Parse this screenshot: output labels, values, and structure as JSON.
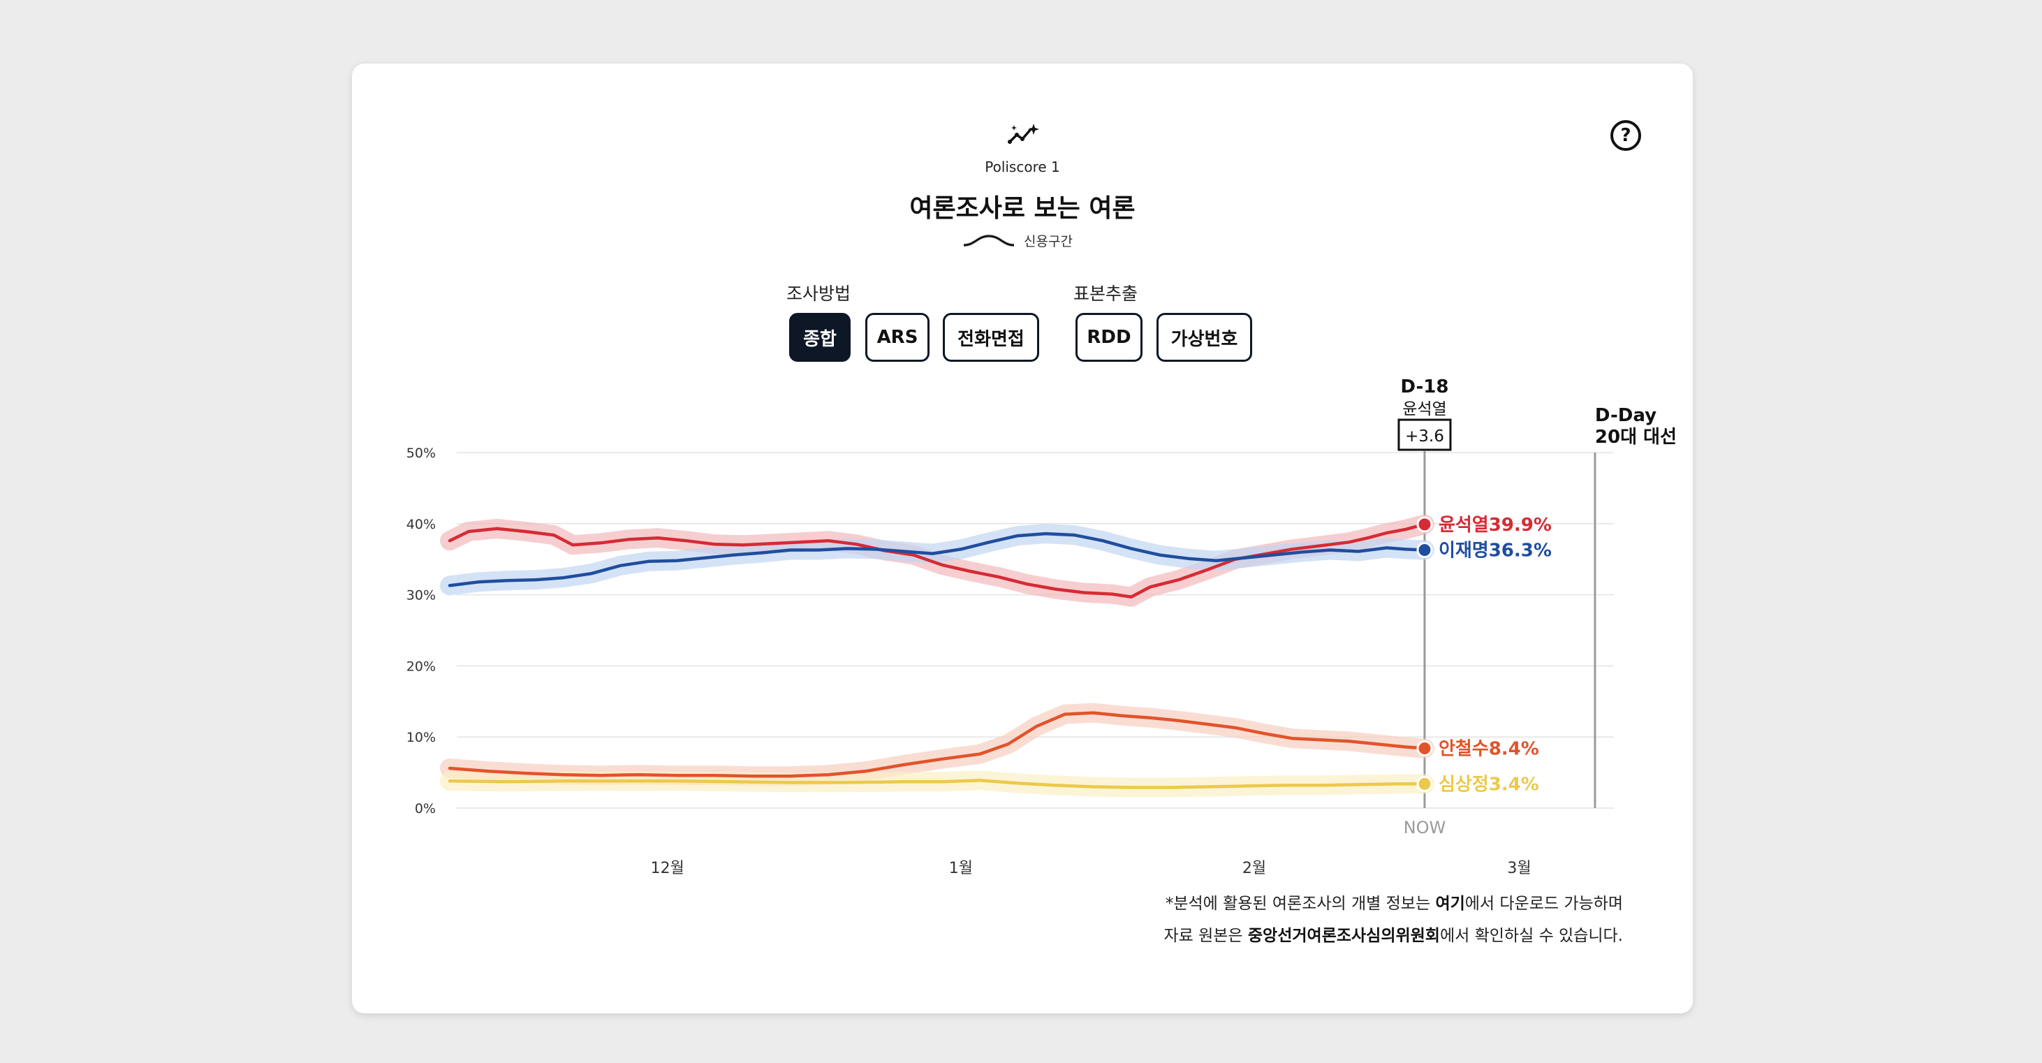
{
  "header": {
    "brand": "Poliscore 1",
    "title": "여론조사로 보는 여론",
    "ci_legend": "신용구간",
    "help_icon": "question-circle-icon"
  },
  "filters": {
    "method_label": "조사방법",
    "method_options": [
      "종합",
      "ARS",
      "전화면접"
    ],
    "method_selected": "종합",
    "sample_label": "표본추출",
    "sample_options": [
      "RDD",
      "가상번호"
    ]
  },
  "annotations": {
    "now_day": "D-18",
    "now_leader": "윤석열",
    "now_margin": "+3.6",
    "now_label": "NOW",
    "dday_label": "D-Day",
    "dday_event": "20대 대선"
  },
  "footnote": {
    "line1_pre": "*분석에 활용된 여론조사의 개별 정보는 ",
    "line1_link": "여기",
    "line1_post": "에서 다운로드 가능하며",
    "line2_pre": "자료 원본은 ",
    "line2_bold": "중앙선거여론조사심의위원회",
    "line2_post": "에서 확인하실 수 있습니다."
  },
  "chart_data": {
    "type": "line",
    "title": "여론조사로 보는 여론",
    "xlabel": "",
    "ylabel": "",
    "ylim": [
      0,
      50
    ],
    "yticks": [
      "0%",
      "10%",
      "20%",
      "30%",
      "40%",
      "50%"
    ],
    "xticks": [
      {
        "label": "12월",
        "date": "2021-12-01"
      },
      {
        "label": "1월",
        "date": "2022-01-01"
      },
      {
        "label": "2월",
        "date": "2022-02-01"
      },
      {
        "label": "3월",
        "date": "2022-03-01"
      }
    ],
    "xlim": [
      "2021-11-08",
      "2022-03-11"
    ],
    "now_date": "2022-02-19",
    "dday_date": "2022-03-09",
    "grid": true,
    "confidence_band": true,
    "series": [
      {
        "name": "윤석열",
        "label": "윤석열39.9%",
        "color": "#d62b35",
        "band_color": "#f2b9bc",
        "points": [
          [
            "2021-11-08",
            37.6
          ],
          [
            "2021-11-10",
            38.9
          ],
          [
            "2021-11-13",
            39.3
          ],
          [
            "2021-11-16",
            38.9
          ],
          [
            "2021-11-19",
            38.4
          ],
          [
            "2021-11-21",
            37.0
          ],
          [
            "2021-11-24",
            37.3
          ],
          [
            "2021-11-27",
            37.8
          ],
          [
            "2021-11-30",
            38.0
          ],
          [
            "2021-12-03",
            37.6
          ],
          [
            "2021-12-06",
            37.1
          ],
          [
            "2021-12-09",
            37.0
          ],
          [
            "2021-12-12",
            37.2
          ],
          [
            "2021-12-15",
            37.4
          ],
          [
            "2021-12-18",
            37.6
          ],
          [
            "2021-12-21",
            37.1
          ],
          [
            "2021-12-24",
            36.2
          ],
          [
            "2021-12-27",
            35.6
          ],
          [
            "2021-12-30",
            34.2
          ],
          [
            "2022-01-02",
            33.3
          ],
          [
            "2022-01-05",
            32.5
          ],
          [
            "2022-01-08",
            31.5
          ],
          [
            "2022-01-11",
            30.8
          ],
          [
            "2022-01-14",
            30.3
          ],
          [
            "2022-01-17",
            30.1
          ],
          [
            "2022-01-19",
            29.7
          ],
          [
            "2022-01-21",
            31.1
          ],
          [
            "2022-01-24",
            32.1
          ],
          [
            "2022-01-27",
            33.5
          ],
          [
            "2022-01-30",
            35.0
          ],
          [
            "2022-02-02",
            35.7
          ],
          [
            "2022-02-05",
            36.4
          ],
          [
            "2022-02-08",
            36.9
          ],
          [
            "2022-02-11",
            37.4
          ],
          [
            "2022-02-13",
            38.0
          ],
          [
            "2022-02-15",
            38.7
          ],
          [
            "2022-02-17",
            39.2
          ],
          [
            "2022-02-19",
            39.9
          ]
        ]
      },
      {
        "name": "이재명",
        "label": "이재명36.3%",
        "color": "#1f4e9e",
        "band_color": "#c2d6f2",
        "points": [
          [
            "2021-11-08",
            31.3
          ],
          [
            "2021-11-11",
            31.8
          ],
          [
            "2021-11-14",
            32.0
          ],
          [
            "2021-11-17",
            32.1
          ],
          [
            "2021-11-20",
            32.4
          ],
          [
            "2021-11-23",
            33.0
          ],
          [
            "2021-11-26",
            34.1
          ],
          [
            "2021-11-29",
            34.7
          ],
          [
            "2021-12-02",
            34.8
          ],
          [
            "2021-12-05",
            35.2
          ],
          [
            "2021-12-08",
            35.6
          ],
          [
            "2021-12-11",
            35.9
          ],
          [
            "2021-12-14",
            36.3
          ],
          [
            "2021-12-17",
            36.3
          ],
          [
            "2021-12-20",
            36.5
          ],
          [
            "2021-12-23",
            36.4
          ],
          [
            "2021-12-26",
            36.1
          ],
          [
            "2021-12-29",
            35.8
          ],
          [
            "2022-01-01",
            36.4
          ],
          [
            "2022-01-04",
            37.4
          ],
          [
            "2022-01-07",
            38.3
          ],
          [
            "2022-01-10",
            38.6
          ],
          [
            "2022-01-13",
            38.4
          ],
          [
            "2022-01-16",
            37.6
          ],
          [
            "2022-01-19",
            36.5
          ],
          [
            "2022-01-22",
            35.6
          ],
          [
            "2022-01-25",
            35.1
          ],
          [
            "2022-01-28",
            34.8
          ],
          [
            "2022-01-31",
            35.2
          ],
          [
            "2022-02-03",
            35.6
          ],
          [
            "2022-02-06",
            36.0
          ],
          [
            "2022-02-09",
            36.3
          ],
          [
            "2022-02-12",
            36.1
          ],
          [
            "2022-02-15",
            36.6
          ],
          [
            "2022-02-17",
            36.4
          ],
          [
            "2022-02-19",
            36.3
          ]
        ]
      },
      {
        "name": "안철수",
        "label": "안철수8.4%",
        "color": "#e2532b",
        "band_color": "#f7cfc0",
        "points": [
          [
            "2021-11-08",
            5.6
          ],
          [
            "2021-11-12",
            5.2
          ],
          [
            "2021-11-16",
            4.9
          ],
          [
            "2021-11-20",
            4.7
          ],
          [
            "2021-11-24",
            4.6
          ],
          [
            "2021-11-28",
            4.7
          ],
          [
            "2021-12-02",
            4.6
          ],
          [
            "2021-12-06",
            4.6
          ],
          [
            "2021-12-10",
            4.5
          ],
          [
            "2021-12-14",
            4.5
          ],
          [
            "2021-12-18",
            4.7
          ],
          [
            "2021-12-22",
            5.2
          ],
          [
            "2021-12-26",
            6.1
          ],
          [
            "2021-12-30",
            6.9
          ],
          [
            "2022-01-03",
            7.6
          ],
          [
            "2022-01-06",
            9.0
          ],
          [
            "2022-01-09",
            11.5
          ],
          [
            "2022-01-12",
            13.2
          ],
          [
            "2022-01-15",
            13.4
          ],
          [
            "2022-01-18",
            13.0
          ],
          [
            "2022-01-21",
            12.7
          ],
          [
            "2022-01-24",
            12.3
          ],
          [
            "2022-01-27",
            11.8
          ],
          [
            "2022-01-30",
            11.3
          ],
          [
            "2022-02-02",
            10.5
          ],
          [
            "2022-02-05",
            9.8
          ],
          [
            "2022-02-08",
            9.6
          ],
          [
            "2022-02-11",
            9.4
          ],
          [
            "2022-02-14",
            9.0
          ],
          [
            "2022-02-17",
            8.6
          ],
          [
            "2022-02-19",
            8.4
          ]
        ]
      },
      {
        "name": "심상정",
        "label": "심상정3.4%",
        "color": "#ecc94b",
        "band_color": "#fbf0c4",
        "points": [
          [
            "2021-11-08",
            3.8
          ],
          [
            "2021-11-14",
            3.7
          ],
          [
            "2021-11-20",
            3.8
          ],
          [
            "2021-11-26",
            3.8
          ],
          [
            "2021-12-02",
            3.8
          ],
          [
            "2021-12-08",
            3.7
          ],
          [
            "2021-12-14",
            3.6
          ],
          [
            "2021-12-20",
            3.6
          ],
          [
            "2021-12-26",
            3.7
          ],
          [
            "2021-12-30",
            3.7
          ],
          [
            "2022-01-03",
            3.9
          ],
          [
            "2022-01-07",
            3.5
          ],
          [
            "2022-01-11",
            3.2
          ],
          [
            "2022-01-15",
            3.0
          ],
          [
            "2022-01-19",
            2.9
          ],
          [
            "2022-01-23",
            2.9
          ],
          [
            "2022-01-27",
            3.0
          ],
          [
            "2022-01-31",
            3.1
          ],
          [
            "2022-02-04",
            3.2
          ],
          [
            "2022-02-08",
            3.2
          ],
          [
            "2022-02-12",
            3.3
          ],
          [
            "2022-02-16",
            3.4
          ],
          [
            "2022-02-19",
            3.4
          ]
        ]
      }
    ]
  }
}
